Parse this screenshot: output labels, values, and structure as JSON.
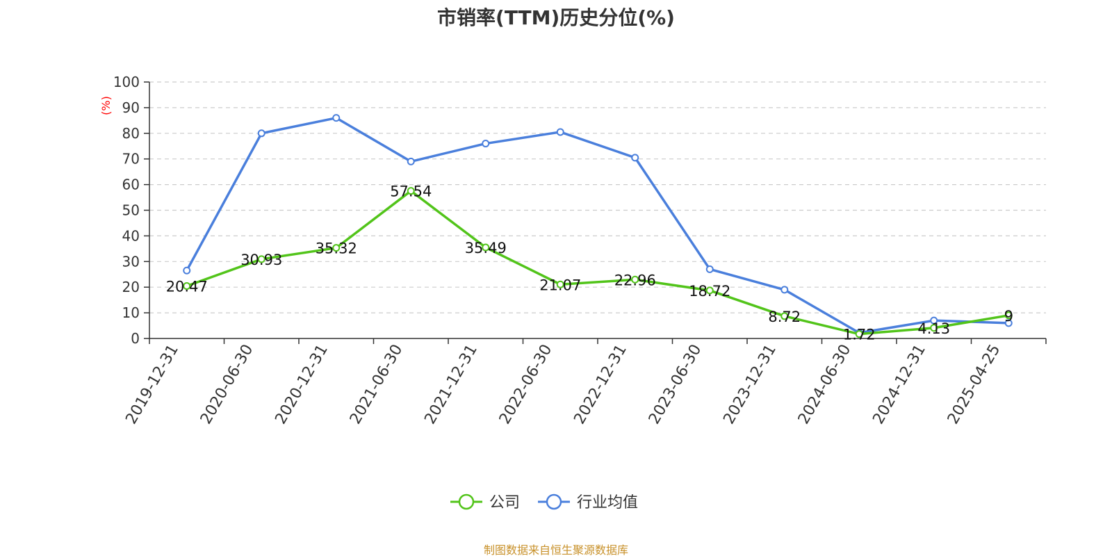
{
  "chart_data": {
    "type": "line",
    "title": "市销率(TTM)历史分位(%)",
    "ylabel": "(%)",
    "xlabel": "",
    "ylim": [
      0,
      100
    ],
    "yticks": [
      0,
      10,
      20,
      30,
      40,
      50,
      60,
      70,
      80,
      90,
      100
    ],
    "grid": true,
    "legend_position": "bottom-center",
    "categories": [
      "2019-12-31",
      "2020-06-30",
      "2020-12-31",
      "2021-06-30",
      "2021-12-31",
      "2022-06-30",
      "2022-12-31",
      "2023-06-30",
      "2023-12-31",
      "2024-06-30",
      "2024-12-31",
      "2025-04-25"
    ],
    "series": [
      {
        "name": "公司",
        "color": "#52c41a",
        "values": [
          20.47,
          30.93,
          35.32,
          57.54,
          35.49,
          21.07,
          22.96,
          18.72,
          8.72,
          1.72,
          4.13,
          9
        ],
        "labels": [
          "20.47",
          "30.93",
          "35.32",
          "57.54",
          "35.49",
          "21.07",
          "22.96",
          "18.72",
          "8.72",
          "1.72",
          "4.13",
          "9"
        ]
      },
      {
        "name": "行业均值",
        "color": "#4a7fdc",
        "values": [
          26.5,
          80,
          86,
          69,
          76,
          80.5,
          70.5,
          27,
          19,
          2.2,
          7,
          6
        ]
      }
    ]
  },
  "footer": {
    "source": "制图数据来自恒生聚源数据库"
  }
}
